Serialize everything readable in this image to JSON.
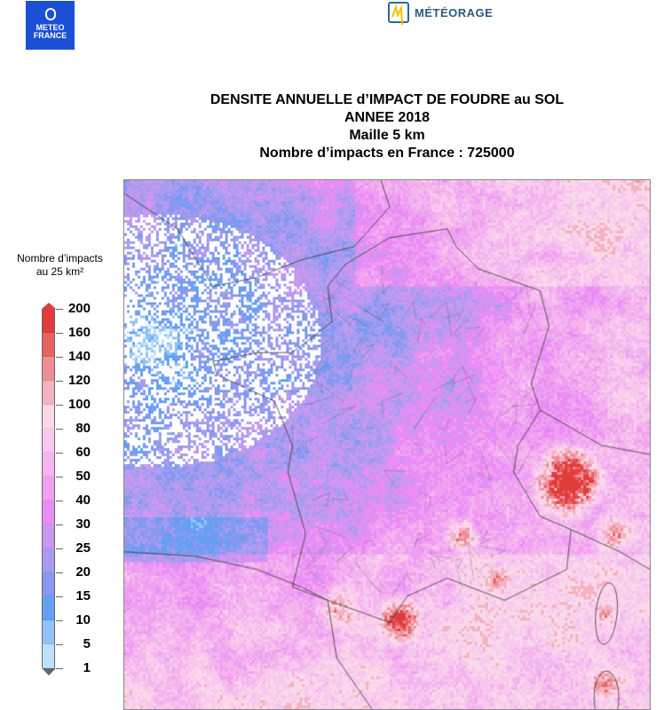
{
  "logos": {
    "meteo_france": "METEO FRANCE",
    "meteorage": "MÉTÉORAGE"
  },
  "title": {
    "line1": "DENSITE ANNUELLE d’IMPACT DE FOUDRE au SOL",
    "line2": "ANNEE 2018",
    "line3": "Maille 5 km",
    "line4": "Nombre d’impacts en France : 725000"
  },
  "legend": {
    "title_line1": "Nombre d’impacts",
    "title_line2": "au 25 km²",
    "labels": [
      "200",
      "160",
      "140",
      "120",
      "100",
      "80",
      "60",
      "50",
      "40",
      "30",
      "25",
      "20",
      "15",
      "10",
      "5",
      "1"
    ],
    "colors": [
      "#e03c3c",
      "#e86262",
      "#ee8e96",
      "#f5b2c0",
      "#fad8ea",
      "#f8c8ee",
      "#f4b4ee",
      "#f0a0f2",
      "#ea8cf6",
      "#c898f0",
      "#a89cf0",
      "#8898f0",
      "#64a0f4",
      "#92c2f8",
      "#bee0fa"
    ],
    "max_arrow_color": "#e03c3c",
    "min_arrow_color": "#ffffff"
  },
  "map": {
    "region": "France",
    "quantity": "lightning ground strike density"
  }
}
